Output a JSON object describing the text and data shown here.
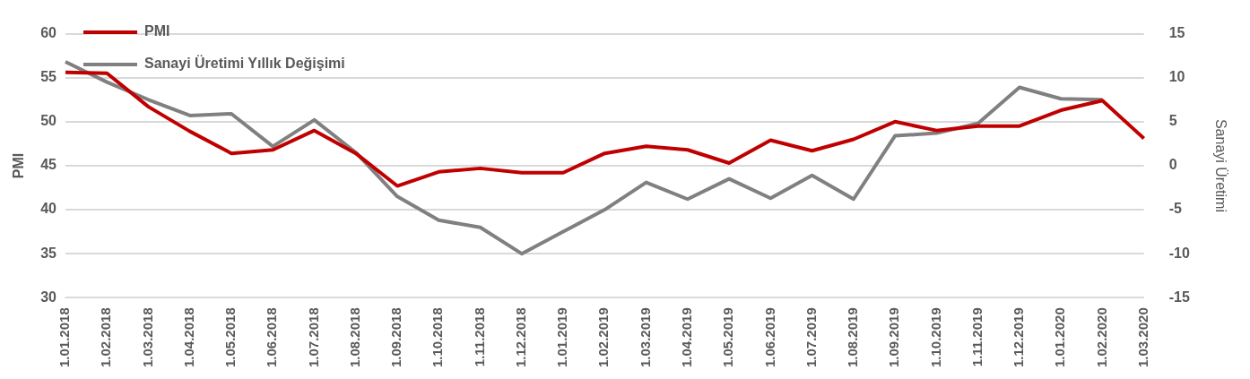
{
  "chart_data": {
    "type": "line",
    "categories": [
      "1.01.2018",
      "1.02.2018",
      "1.03.2018",
      "1.04.2018",
      "1.05.2018",
      "1.06.2018",
      "1.07.2018",
      "1.08.2018",
      "1.09.2018",
      "1.10.2018",
      "1.11.2018",
      "1.12.2018",
      "1.01.2019",
      "1.02.2019",
      "1.03.2019",
      "1.04.2019",
      "1.05.2019",
      "1.06.2019",
      "1.07.2019",
      "1.08.2019",
      "1.09.2019",
      "1.10.2019",
      "1.11.2019",
      "1.12.2019",
      "1.01.2020",
      "1.02.2020",
      "1.03.2020"
    ],
    "series": [
      {
        "name": "PMI",
        "color": "#c00000",
        "values": [
          55.6,
          55.5,
          51.7,
          48.9,
          46.4,
          46.8,
          49.0,
          46.4,
          42.7,
          44.3,
          44.7,
          44.2,
          44.2,
          46.4,
          47.2,
          46.8,
          45.3,
          47.9,
          46.7,
          48.0,
          50.0,
          49.0,
          49.5,
          49.5,
          51.3,
          52.4,
          48.1
        ]
      },
      {
        "name": "Sanayi Üretimi Yıllık Değişimi",
        "color": "#808080",
        "axis": "y2",
        "values": [
          11.8,
          9.5,
          7.5,
          5.7,
          5.9,
          2.2,
          5.2,
          1.5,
          -3.5,
          -6.2,
          -7.0,
          -10.0,
          -7.5,
          -5.0,
          -1.9,
          -3.8,
          -1.5,
          -3.7,
          -1.1,
          -3.8,
          3.4,
          3.7,
          4.8,
          8.9,
          7.6,
          7.5,
          null
        ]
      }
    ],
    "ylabel": "PMI",
    "y2label": "Sanayi Üretimi",
    "ylim": [
      30,
      60
    ],
    "yticks": [
      30,
      35,
      40,
      45,
      50,
      55,
      60
    ],
    "y2lim": [
      -15,
      15
    ],
    "y2ticks": [
      -15,
      -10,
      -5,
      0,
      5,
      10,
      15
    ],
    "grid": "y",
    "legend": "top left",
    "marker": "none",
    "line_style": "solid"
  }
}
